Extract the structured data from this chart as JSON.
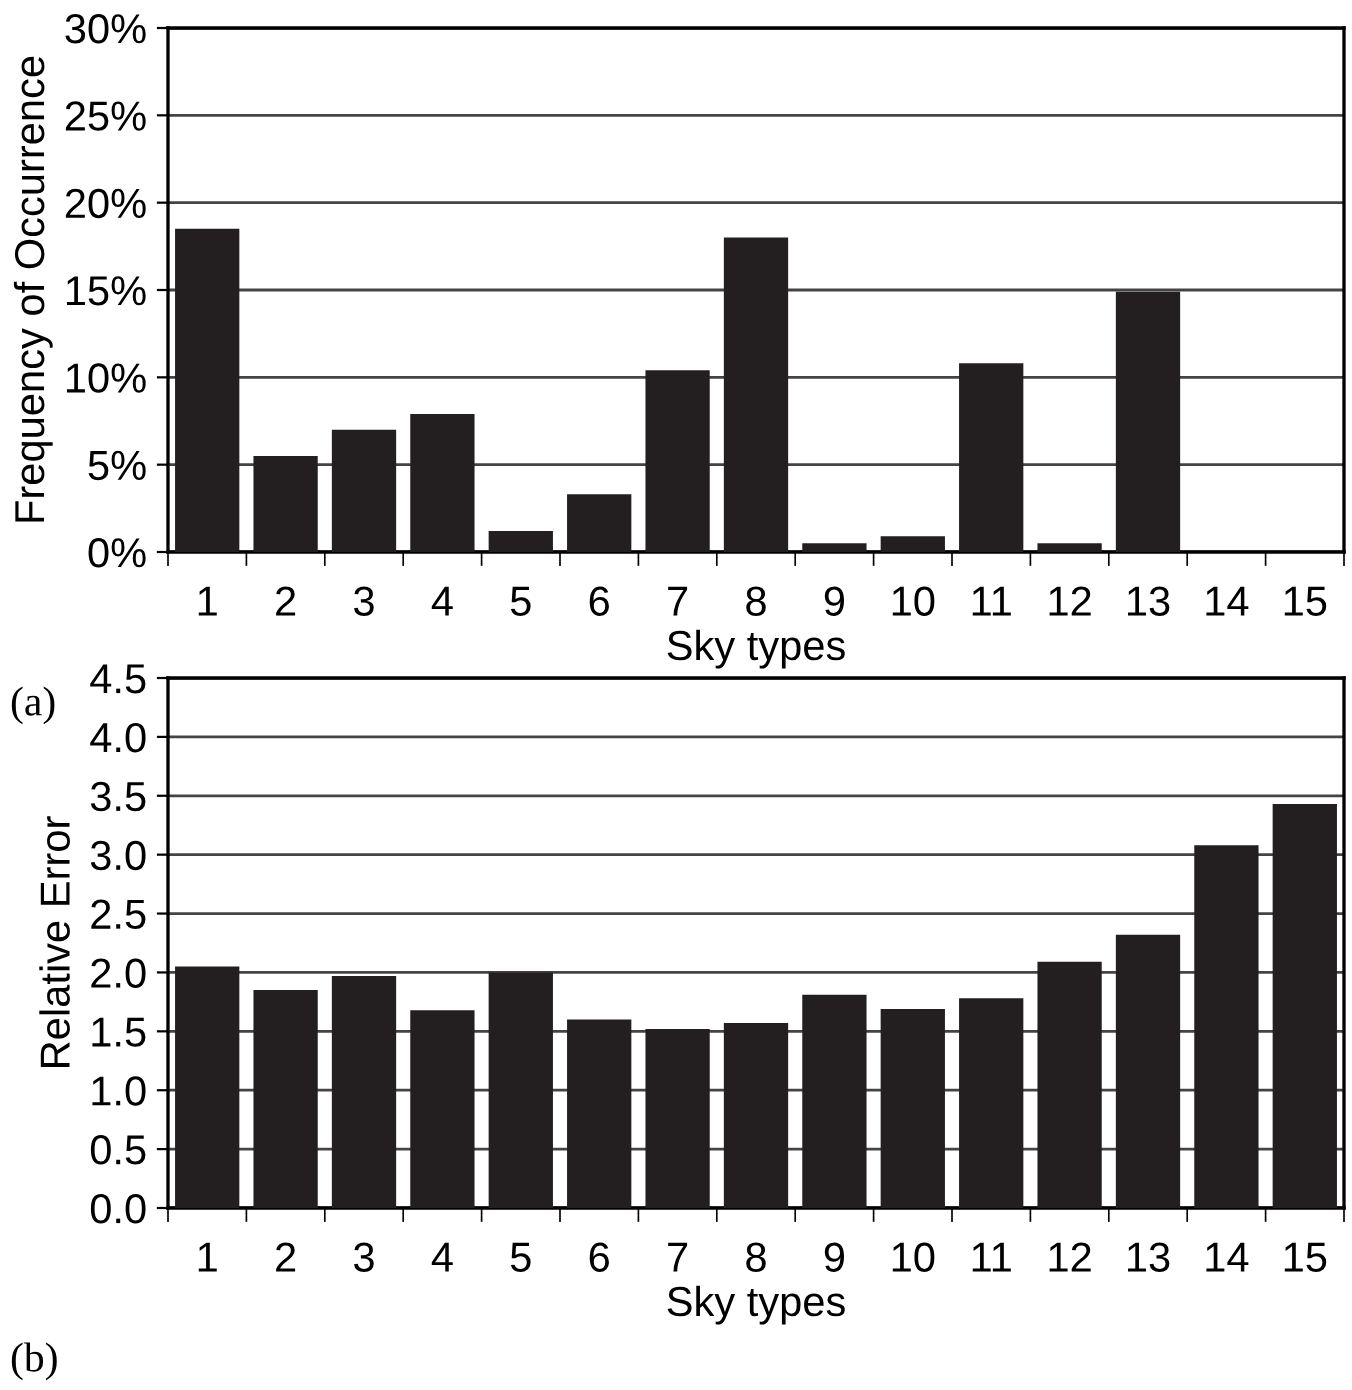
{
  "chart_data": [
    {
      "type": "bar",
      "xlabel": "Sky types",
      "ylabel": "Frequency of Occurrence",
      "categories": [
        "1",
        "2",
        "3",
        "4",
        "5",
        "6",
        "7",
        "8",
        "9",
        "10",
        "11",
        "12",
        "13",
        "14",
        "15"
      ],
      "values": [
        18.5,
        5.5,
        7.0,
        7.9,
        1.2,
        3.3,
        10.4,
        18.0,
        0.5,
        0.9,
        10.8,
        0.5,
        14.9,
        0,
        0
      ],
      "color": "#231f20",
      "ylim": [
        0,
        30
      ],
      "yticks": [
        {
          "value": 0,
          "label": "0%"
        },
        {
          "value": 5,
          "label": "5%"
        },
        {
          "value": 10,
          "label": "10%"
        },
        {
          "value": 15,
          "label": "15%"
        },
        {
          "value": 20,
          "label": "20%"
        },
        {
          "value": 25,
          "label": "25%"
        },
        {
          "value": 30,
          "label": "30%"
        }
      ],
      "grid": "y",
      "legend": false,
      "annotations": [
        "(a)"
      ]
    },
    {
      "type": "bar",
      "xlabel": "Sky types",
      "ylabel": "Relative Error",
      "categories": [
        "1",
        "2",
        "3",
        "4",
        "5",
        "6",
        "7",
        "8",
        "9",
        "10",
        "11",
        "12",
        "13",
        "14",
        "15"
      ],
      "values": [
        2.05,
        1.85,
        1.97,
        1.68,
        2.0,
        1.6,
        1.52,
        1.57,
        1.81,
        1.69,
        1.78,
        2.09,
        2.32,
        3.08,
        3.43
      ],
      "color": "#231f20",
      "ylim": [
        0,
        4.5
      ],
      "yticks": [
        {
          "value": 0,
          "label": "0.0"
        },
        {
          "value": 0.5,
          "label": "0.5"
        },
        {
          "value": 1,
          "label": "1.0"
        },
        {
          "value": 1.5,
          "label": "1.5"
        },
        {
          "value": 2,
          "label": "2.0"
        },
        {
          "value": 2.5,
          "label": "2.5"
        },
        {
          "value": 3,
          "label": "3.0"
        },
        {
          "value": 3.5,
          "label": "3.5"
        },
        {
          "value": 4,
          "label": "4.0"
        },
        {
          "value": 4.5,
          "label": "4.5"
        }
      ],
      "grid": "y",
      "legend": false,
      "annotations": [
        "(b)"
      ]
    }
  ]
}
